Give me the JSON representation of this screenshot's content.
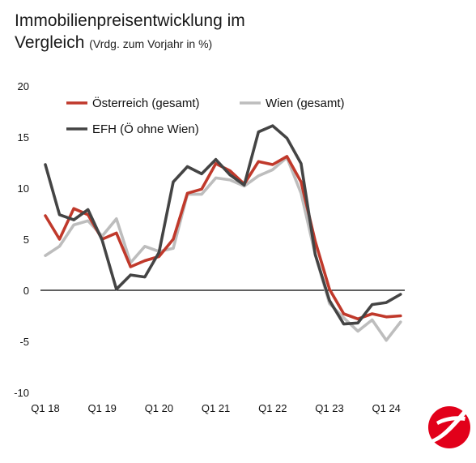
{
  "title": {
    "line1": "Immobilienpreisentwicklung im",
    "line2": "Vergleich",
    "subtitle": "(Vrdg. zum Vorjahr in %)"
  },
  "colors": {
    "oesterreich": "#c0392b",
    "wien": "#bdbdbd",
    "efh": "#444444",
    "zero_line": "#000000",
    "logo": "#e2001a"
  },
  "logo": {
    "icon": "unicredit-logo-icon"
  },
  "chart_data": {
    "type": "line",
    "ylim": [
      -10,
      20
    ],
    "yticks": [
      "20",
      "15",
      "10",
      "5",
      "0",
      "-5",
      "-10"
    ],
    "ytick_values": [
      20,
      15,
      10,
      5,
      0,
      -5,
      -10
    ],
    "xtick_labels": [
      "Q1 18",
      "Q1 19",
      "Q1 20",
      "Q1 21",
      "Q1 22",
      "Q1 23",
      "Q1 24"
    ],
    "xtick_index": [
      0,
      4,
      8,
      12,
      16,
      20,
      24
    ],
    "x": [
      "Q1 18",
      "Q2 18",
      "Q3 18",
      "Q4 18",
      "Q1 19",
      "Q2 19",
      "Q3 19",
      "Q4 19",
      "Q1 20",
      "Q2 20",
      "Q3 20",
      "Q4 20",
      "Q1 21",
      "Q2 21",
      "Q3 21",
      "Q4 21",
      "Q1 22",
      "Q2 22",
      "Q3 22",
      "Q4 22",
      "Q1 23",
      "Q2 23",
      "Q3 23",
      "Q4 23",
      "Q1 24",
      "Q2 24"
    ],
    "series": [
      {
        "name": "Österreich (gesamt)",
        "color": "#c0392b",
        "values": [
          7.3,
          5.0,
          8.0,
          7.4,
          5.0,
          5.6,
          2.3,
          2.9,
          3.3,
          5.0,
          9.5,
          9.9,
          12.4,
          11.7,
          10.4,
          12.6,
          12.3,
          13.1,
          10.6,
          4.8,
          0.1,
          -2.3,
          -2.8,
          -2.3,
          -2.6,
          -2.5
        ]
      },
      {
        "name": "Wien (gesamt)",
        "color": "#bdbdbd",
        "values": [
          3.4,
          4.3,
          6.4,
          6.8,
          5.3,
          7.0,
          2.7,
          4.3,
          3.8,
          4.1,
          9.4,
          9.4,
          11.0,
          10.8,
          10.2,
          11.2,
          11.8,
          13.0,
          9.5,
          3.5,
          -1.3,
          -2.7,
          -4.0,
          -2.9,
          -4.9,
          -3.1
        ]
      },
      {
        "name": "EFH (Ö ohne Wien)",
        "color": "#444444",
        "values": [
          12.3,
          7.4,
          6.9,
          7.9,
          4.9,
          0.1,
          1.5,
          1.3,
          3.7,
          10.6,
          12.1,
          11.4,
          12.8,
          11.3,
          10.3,
          15.5,
          16.1,
          14.9,
          12.4,
          3.5,
          -1.0,
          -3.3,
          -3.2,
          -1.4,
          -1.2,
          -0.4
        ]
      }
    ]
  }
}
